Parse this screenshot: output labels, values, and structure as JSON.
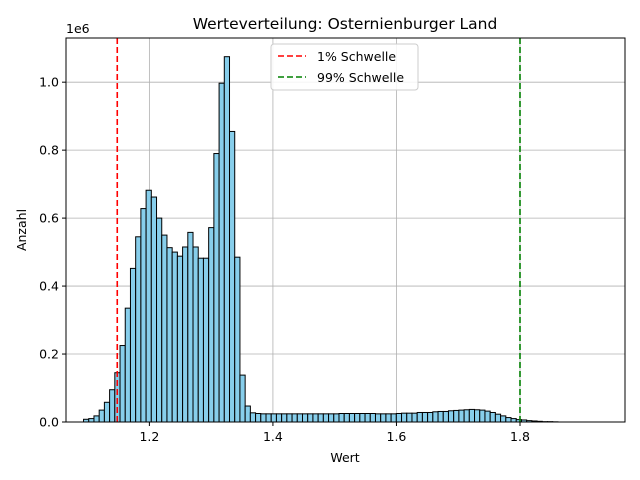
{
  "chart_data": {
    "type": "bar",
    "title": "Werteverteilung: Osternienburger Land",
    "xlabel": "Wert",
    "ylabel": "Anzahl",
    "y_offset_label": "1e6",
    "xlim": [
      1.065,
      1.97
    ],
    "ylim": [
      0,
      1.13
    ],
    "x_ticks": [
      1.2,
      1.4,
      1.6,
      1.8
    ],
    "x_tick_labels": [
      "1.2",
      "1.4",
      "1.6",
      "1.8"
    ],
    "y_ticks": [
      0,
      0.2,
      0.4,
      0.6,
      0.8,
      1.0
    ],
    "y_tick_labels": [
      "0.0",
      "0.2",
      "0.4",
      "0.6",
      "0.8",
      "1.0"
    ],
    "grid": true,
    "bar_color": "#87CEEB",
    "bar_edge_color": "#000000",
    "bins": {
      "start": 1.0934,
      "width": 0.00844,
      "values": [
        0.008,
        0.01,
        0.018,
        0.035,
        0.058,
        0.095,
        0.145,
        0.225,
        0.335,
        0.452,
        0.545,
        0.628,
        0.682,
        0.662,
        0.6,
        0.55,
        0.513,
        0.5,
        0.488,
        0.515,
        0.558,
        0.515,
        0.482,
        0.482,
        0.572,
        0.79,
        0.997,
        1.075,
        0.855,
        0.485,
        0.138,
        0.047,
        0.027,
        0.025,
        0.024,
        0.024,
        0.024,
        0.024,
        0.024,
        0.024,
        0.024,
        0.024,
        0.024,
        0.024,
        0.024,
        0.024,
        0.024,
        0.024,
        0.024,
        0.025,
        0.025,
        0.025,
        0.025,
        0.025,
        0.025,
        0.025,
        0.024,
        0.024,
        0.024,
        0.024,
        0.025,
        0.026,
        0.026,
        0.026,
        0.028,
        0.028,
        0.028,
        0.03,
        0.031,
        0.031,
        0.033,
        0.034,
        0.035,
        0.036,
        0.037,
        0.036,
        0.035,
        0.032,
        0.028,
        0.023,
        0.018,
        0.013,
        0.01,
        0.007,
        0.006,
        0.004,
        0.003,
        0.002,
        0.001,
        0.001,
        0.0005
      ]
    },
    "thresholds": [
      {
        "name": "1% Schwelle",
        "value": 1.148,
        "color": "#ff0000"
      },
      {
        "name": "99% Schwelle",
        "value": 1.8,
        "color": "#008000"
      }
    ],
    "legend_position": "top-center"
  }
}
